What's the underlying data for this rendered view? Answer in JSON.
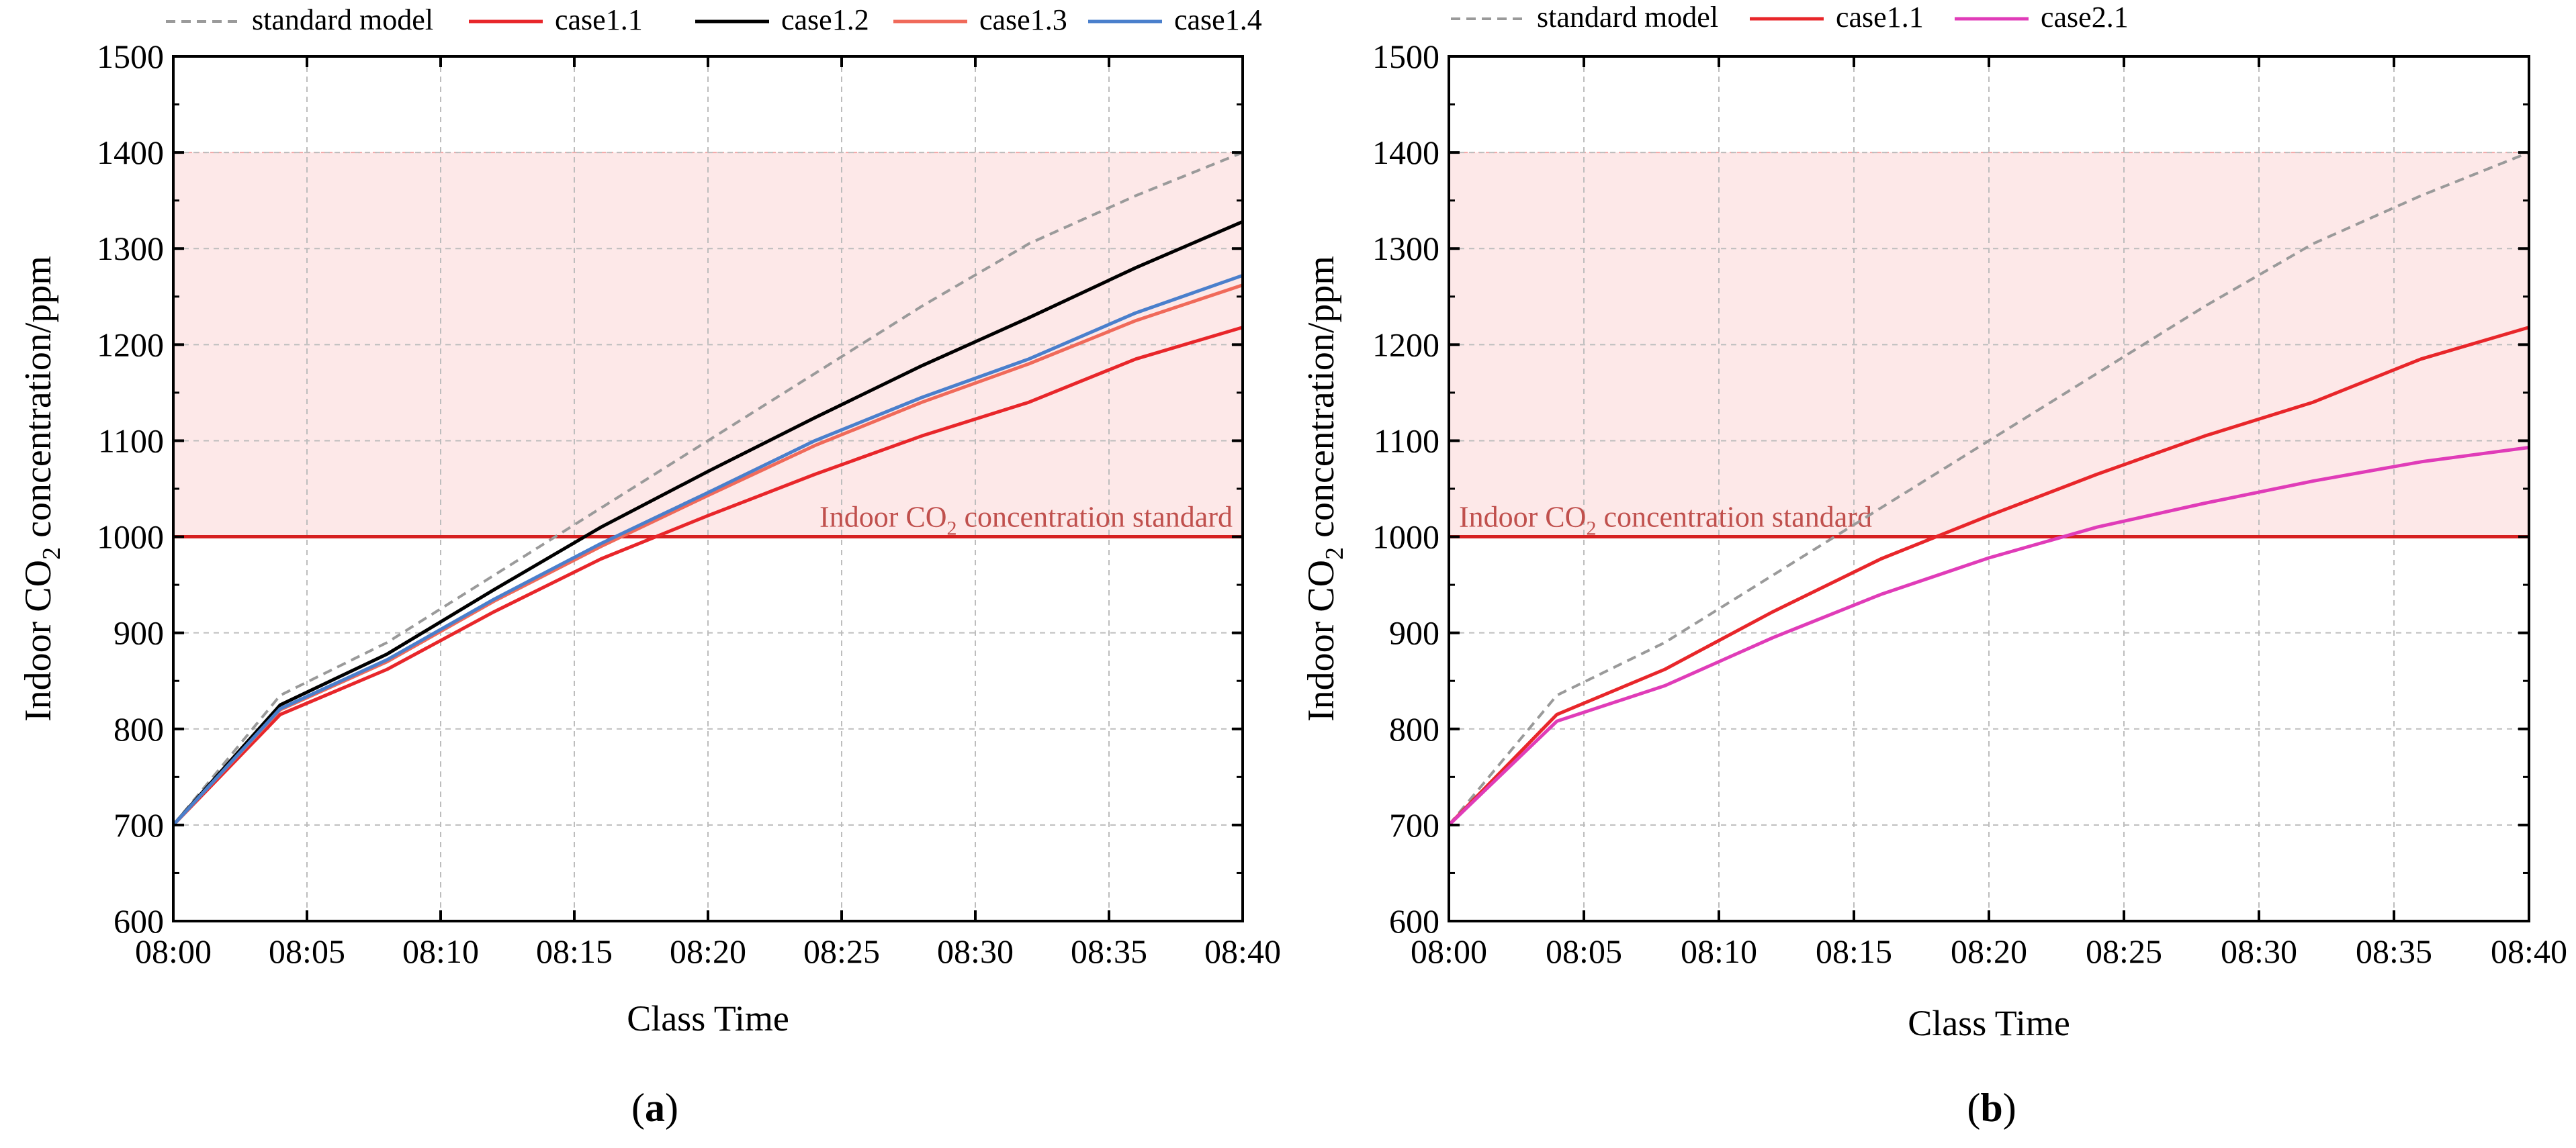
{
  "chart_data": [
    {
      "type": "line",
      "panel_label": "a",
      "xlabel": "Class Time",
      "ylabel_prefix": "Indoor CO",
      "ylabel_sub": "2",
      "ylabel_suffix": " concentration/ppm",
      "x": [
        0,
        4,
        8,
        12,
        16,
        20,
        24,
        28,
        32,
        36,
        40
      ],
      "x_ticks": [
        0,
        5,
        10,
        15,
        20,
        25,
        30,
        35,
        40
      ],
      "x_tick_labels": [
        "08:00",
        "08:05",
        "08:10",
        "08:15",
        "08:20",
        "08:25",
        "08:30",
        "08:35",
        "08:40"
      ],
      "xlim": [
        0,
        40
      ],
      "ylim": [
        600,
        1500
      ],
      "y_ticks": [
        600,
        700,
        800,
        900,
        1000,
        1100,
        1200,
        1300,
        1400,
        1500
      ],
      "y_tick_labels": [
        "600",
        "700",
        "800",
        "900",
        "1000",
        "1100",
        "1200",
        "1300",
        "1400",
        "1500"
      ],
      "grid": true,
      "band": {
        "from": 1000,
        "to": 1400,
        "color": "#fde8e8"
      },
      "standard": {
        "value": 1000,
        "color": "#d62020",
        "label_prefix": "Indoor CO",
        "label_sub": "2",
        "label_suffix": " concentration standard",
        "label_color": "#c0504d"
      },
      "series": [
        {
          "name": "standard model",
          "color": "#9a9a9a",
          "dash": true,
          "values": [
            700,
            835,
            890,
            960,
            1030,
            1100,
            1170,
            1240,
            1305,
            1355,
            1400
          ]
        },
        {
          "name": "case1.1",
          "color": "#e8262a",
          "dash": false,
          "values": [
            700,
            815,
            862,
            922,
            977,
            1022,
            1065,
            1105,
            1140,
            1185,
            1218
          ]
        },
        {
          "name": "case1.2",
          "color": "#000000",
          "dash": false,
          "values": [
            700,
            825,
            878,
            945,
            1010,
            1068,
            1124,
            1178,
            1228,
            1280,
            1328
          ]
        },
        {
          "name": "case1.3",
          "color": "#f06a5a",
          "dash": false,
          "values": [
            700,
            820,
            870,
            933,
            990,
            1043,
            1095,
            1140,
            1180,
            1225,
            1262
          ]
        },
        {
          "name": "case1.4",
          "color": "#4a7fcc",
          "dash": false,
          "values": [
            700,
            821,
            872,
            935,
            993,
            1046,
            1100,
            1145,
            1185,
            1233,
            1272
          ]
        }
      ]
    },
    {
      "type": "line",
      "panel_label": "b",
      "xlabel": "Class Time",
      "ylabel_prefix": "Indoor CO",
      "ylabel_sub": "2",
      "ylabel_suffix": " concentration/ppm",
      "x": [
        0,
        4,
        8,
        12,
        16,
        20,
        24,
        28,
        32,
        36,
        40
      ],
      "x_ticks": [
        0,
        5,
        10,
        15,
        20,
        25,
        30,
        35,
        40
      ],
      "x_tick_labels": [
        "08:00",
        "08:05",
        "08:10",
        "08:15",
        "08:20",
        "08:25",
        "08:30",
        "08:35",
        "08:40"
      ],
      "xlim": [
        0,
        40
      ],
      "ylim": [
        600,
        1500
      ],
      "y_ticks": [
        600,
        700,
        800,
        900,
        1000,
        1100,
        1200,
        1300,
        1400,
        1500
      ],
      "y_tick_labels": [
        "600",
        "700",
        "800",
        "900",
        "1000",
        "1100",
        "1200",
        "1300",
        "1400",
        "1500"
      ],
      "grid": true,
      "band": {
        "from": 1000,
        "to": 1400,
        "color": "#fde8e8"
      },
      "standard": {
        "value": 1000,
        "color": "#d62020",
        "label_prefix": "Indoor CO",
        "label_sub": "2",
        "label_suffix": " concentration standard",
        "label_color": "#c0504d"
      },
      "series": [
        {
          "name": "standard model",
          "color": "#9a9a9a",
          "dash": true,
          "values": [
            700,
            835,
            890,
            960,
            1030,
            1100,
            1170,
            1240,
            1305,
            1355,
            1400
          ]
        },
        {
          "name": "case1.1",
          "color": "#e8262a",
          "dash": false,
          "values": [
            700,
            815,
            862,
            922,
            977,
            1022,
            1065,
            1105,
            1140,
            1185,
            1218
          ]
        },
        {
          "name": "case2.1",
          "color": "#e03cb8",
          "dash": false,
          "values": [
            700,
            808,
            845,
            895,
            940,
            978,
            1010,
            1035,
            1058,
            1078,
            1093
          ]
        }
      ]
    }
  ]
}
